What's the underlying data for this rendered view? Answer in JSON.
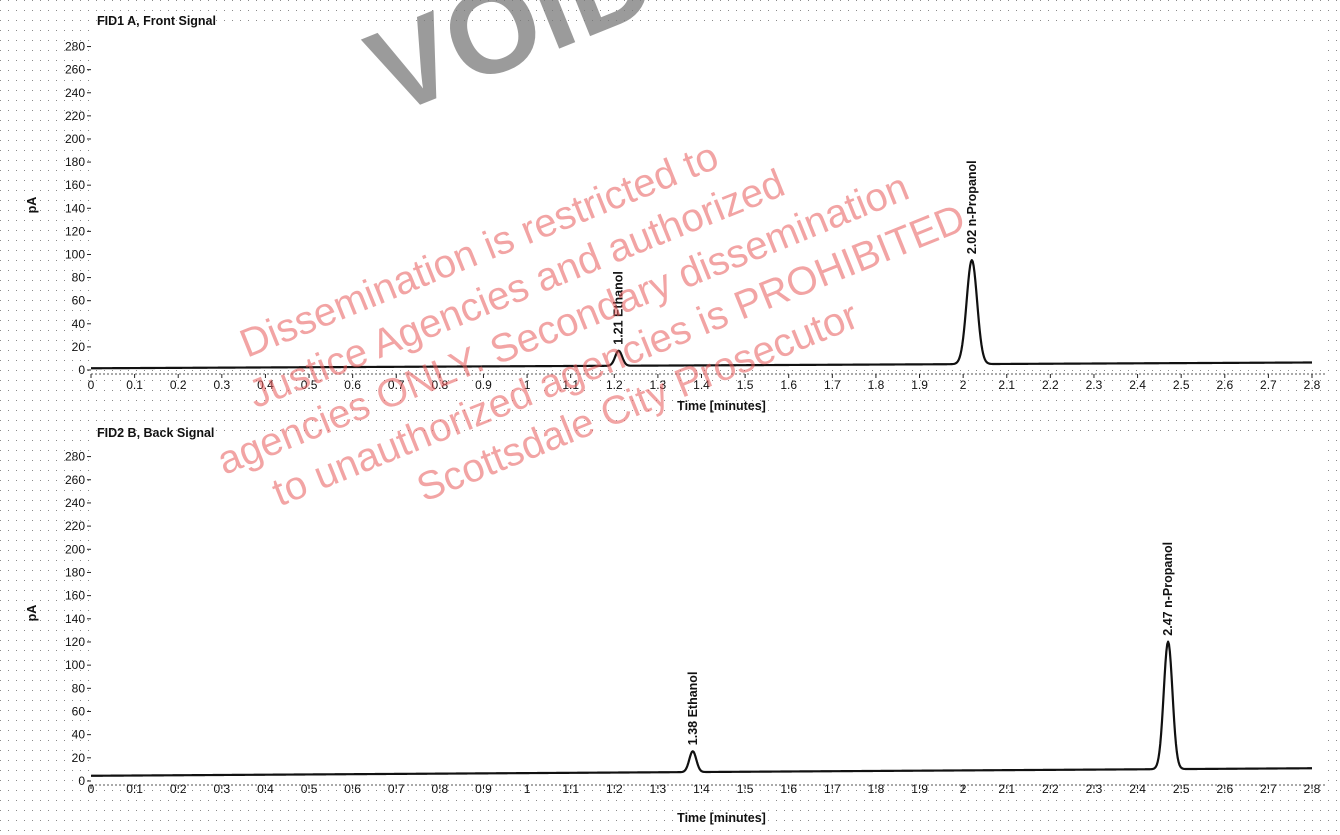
{
  "chart_data": [
    {
      "type": "line",
      "title": "FID1 A, Front Signal",
      "xlabel": "Time [minutes]",
      "ylabel": "pA",
      "xlim": [
        0,
        2.8
      ],
      "ylim": [
        0,
        290
      ],
      "x_ticks": [
        0,
        0.1,
        0.2,
        0.3,
        0.4,
        0.5,
        0.6,
        0.7,
        0.8,
        0.9,
        1,
        1.1,
        1.2,
        1.3,
        1.4,
        1.5,
        1.6,
        1.7,
        1.8,
        1.9,
        2,
        2.1,
        2.2,
        2.3,
        2.4,
        2.5,
        2.6,
        2.7,
        2.8
      ],
      "y_ticks": [
        0,
        20,
        40,
        60,
        80,
        100,
        120,
        140,
        160,
        180,
        200,
        220,
        240,
        260,
        280
      ],
      "grid": "dotted",
      "baseline": {
        "start": 1.5,
        "end": 6.5
      },
      "peaks": [
        {
          "time": 1.21,
          "height": 13,
          "width": 0.008,
          "label": "1.21  Ethanol"
        },
        {
          "time": 2.02,
          "height": 90,
          "width": 0.012,
          "label": "2.02  n-Propanol"
        }
      ]
    },
    {
      "type": "line",
      "title": "FID2 B, Back Signal",
      "xlabel": "Time [minutes]",
      "ylabel": "pA",
      "xlim": [
        0,
        2.8
      ],
      "ylim": [
        0,
        290
      ],
      "x_ticks": [
        0,
        0.1,
        0.2,
        0.3,
        0.4,
        0.5,
        0.6,
        0.7,
        0.8,
        0.9,
        1,
        1.1,
        1.2,
        1.3,
        1.4,
        1.5,
        1.6,
        1.7,
        1.8,
        1.9,
        2,
        2.1,
        2.2,
        2.3,
        2.4,
        2.5,
        2.6,
        2.7,
        2.8
      ],
      "y_ticks": [
        0,
        20,
        40,
        60,
        80,
        100,
        120,
        140,
        160,
        180,
        200,
        220,
        240,
        260,
        280
      ],
      "grid": "dotted",
      "baseline": {
        "start": 4.5,
        "end": 11
      },
      "peaks": [
        {
          "time": 1.38,
          "height": 18,
          "width": 0.008,
          "label": "1.38  Ethanol"
        },
        {
          "time": 2.47,
          "height": 110,
          "width": 0.01,
          "label": "2.47  n-Propanol"
        }
      ]
    }
  ],
  "watermark": {
    "lines": [
      "Dissemination is restricted to",
      "Justice Agencies and authorized",
      "agencies ONLY. Secondary dissemination",
      "to unauthorized agencies is PROHIBITED",
      "Scottsdale City Prosecutor"
    ],
    "stamp_text": "VOID",
    "color": "#e85a5a"
  }
}
